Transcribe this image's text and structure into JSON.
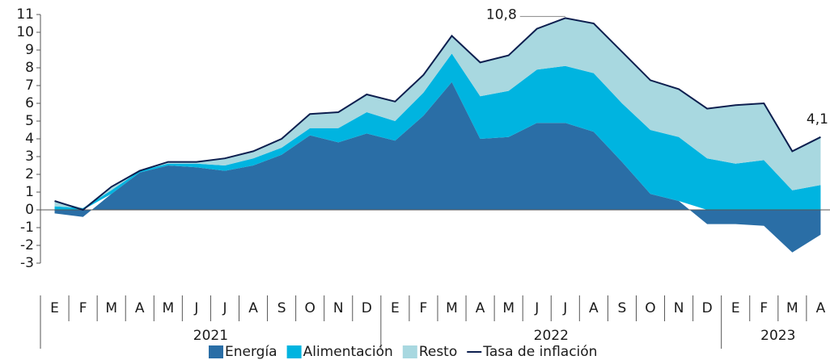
{
  "chart_data": {
    "type": "stacked-area-line",
    "categories": [
      "E",
      "F",
      "M",
      "A",
      "M",
      "J",
      "J",
      "A",
      "S",
      "O",
      "N",
      "D",
      "E",
      "F",
      "M",
      "A",
      "M",
      "J",
      "J",
      "A",
      "S",
      "O",
      "N",
      "D",
      "E",
      "F",
      "M",
      "A"
    ],
    "years": [
      "2021",
      "2022",
      "2023"
    ],
    "series": [
      {
        "name": "Energía",
        "color": "#2a6ea6",
        "kind": "area",
        "values": [
          -0.2,
          -0.4,
          0.9,
          2.1,
          2.5,
          2.4,
          2.2,
          2.5,
          3.1,
          4.2,
          3.8,
          4.3,
          3.9,
          5.3,
          7.2,
          4.0,
          4.1,
          4.9,
          4.9,
          4.4,
          2.7,
          0.9,
          0.5,
          -0.8,
          -0.8,
          -0.9,
          -2.4,
          -1.4
        ]
      },
      {
        "name": "Alimentación",
        "color": "#00b4e0",
        "kind": "area",
        "values": [
          0.2,
          0.1,
          0.2,
          0.1,
          0.1,
          0.2,
          0.3,
          0.4,
          0.4,
          0.4,
          0.8,
          1.2,
          1.1,
          1.3,
          1.6,
          2.4,
          2.6,
          3.0,
          3.2,
          3.3,
          3.3,
          3.6,
          3.6,
          2.9,
          2.6,
          2.8,
          1.1,
          1.4
        ]
      },
      {
        "name": "Resto",
        "color": "#a8d8e0",
        "kind": "area",
        "values": [
          0.3,
          0.0,
          0.2,
          0.0,
          0.1,
          0.1,
          0.4,
          0.4,
          0.5,
          0.8,
          0.9,
          1.0,
          1.1,
          1.0,
          1.0,
          1.9,
          2.0,
          2.3,
          2.7,
          2.8,
          2.9,
          2.8,
          2.7,
          2.8,
          3.3,
          3.2,
          2.2,
          2.7
        ]
      },
      {
        "name": "Tasa de inflación",
        "color": "#0d1f4f",
        "kind": "line",
        "values": [
          0.5,
          0.0,
          1.3,
          2.2,
          2.7,
          2.7,
          2.9,
          3.3,
          4.0,
          5.4,
          5.5,
          6.5,
          6.1,
          7.6,
          9.8,
          8.3,
          8.7,
          10.2,
          10.8,
          10.5,
          8.9,
          7.3,
          6.8,
          5.7,
          5.9,
          6.0,
          3.3,
          4.1
        ],
        "value_labels": [
          null,
          null,
          null,
          null,
          null,
          null,
          null,
          null,
          null,
          null,
          null,
          null,
          null,
          null,
          null,
          null,
          null,
          null,
          "10,8",
          null,
          null,
          null,
          null,
          null,
          null,
          null,
          null,
          "4,1"
        ]
      }
    ],
    "ylim": [
      -3,
      11
    ],
    "yticks": [
      -3,
      -2,
      -1,
      0,
      1,
      2,
      3,
      4,
      5,
      6,
      7,
      8,
      9,
      10,
      11
    ]
  }
}
